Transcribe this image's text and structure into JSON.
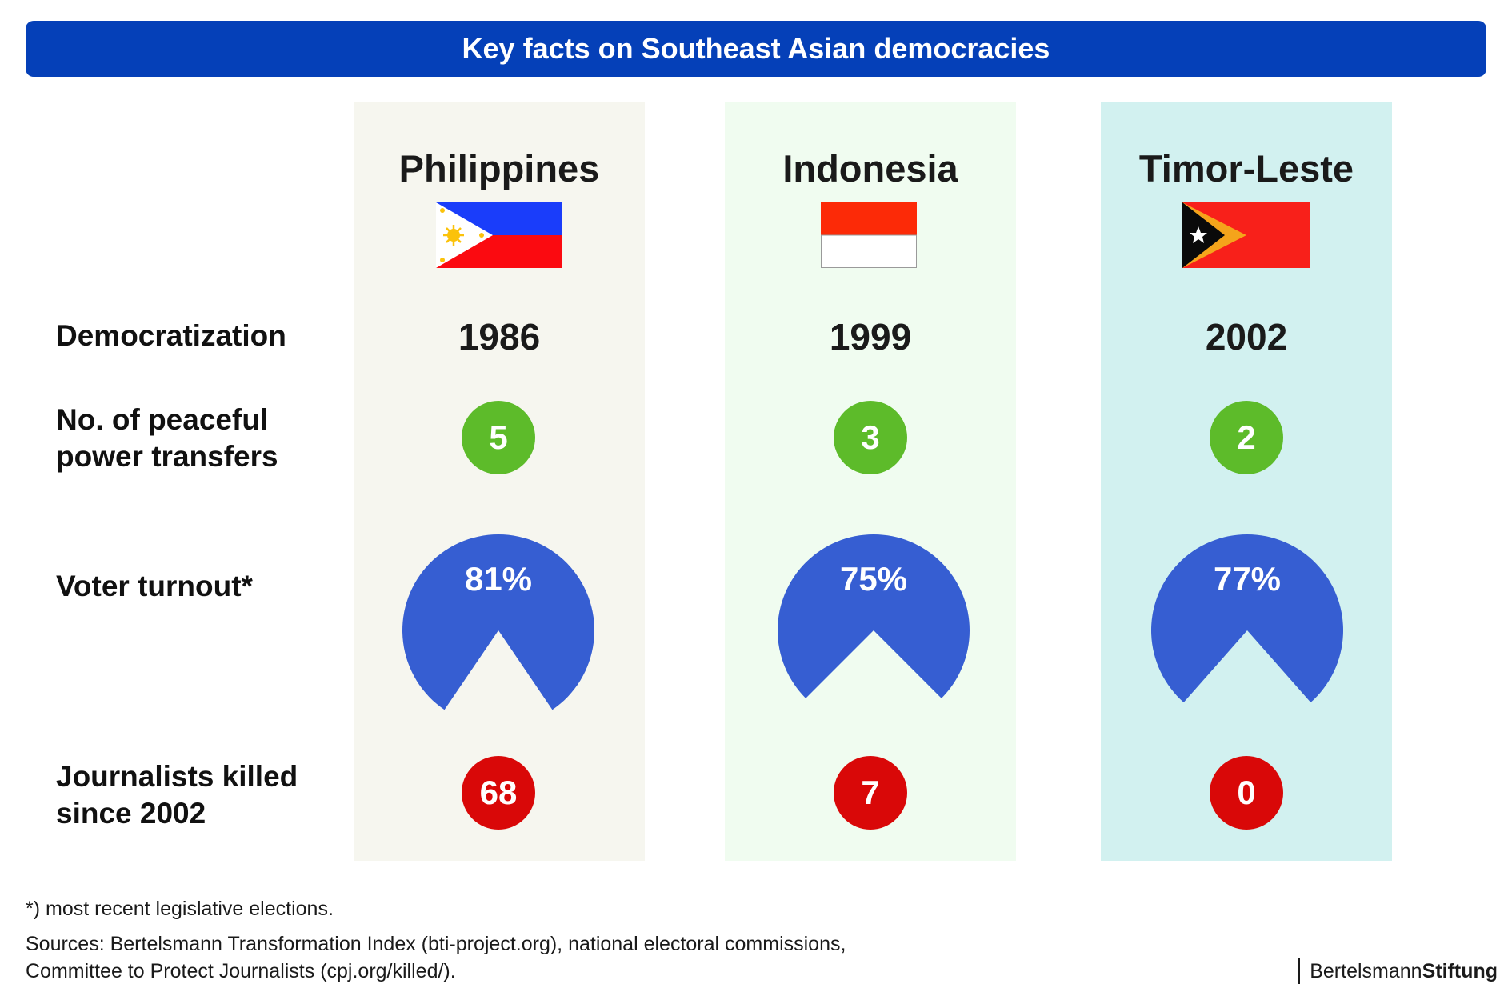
{
  "title": "Key facts on Southeast Asian democracies",
  "colors": {
    "banner": "#0540b8",
    "pie": "#365ed2",
    "green": "#5dbb2a",
    "red": "#d90808",
    "col_philippines": "#f6f6ef",
    "col_indonesia": "#f0fcf0",
    "col_timor": "#d2f1f0"
  },
  "row_labels": {
    "democratization": "Democratization",
    "transfers_line1": "No. of peaceful",
    "transfers_line2": "power transfers",
    "turnout": "Voter turnout*",
    "journalists_line1": "Journalists killed",
    "journalists_line2": "since 2002"
  },
  "countries": [
    {
      "name": "Philippines",
      "flag": "philippines-flag",
      "democratization": "1986",
      "transfers": "5",
      "turnout_label": "81%",
      "journalists": "68"
    },
    {
      "name": "Indonesia",
      "flag": "indonesia-flag",
      "democratization": "1999",
      "transfers": "3",
      "turnout_label": "75%",
      "journalists": "7"
    },
    {
      "name": "Timor-Leste",
      "flag": "timor-leste-flag",
      "democratization": "2002",
      "transfers": "2",
      "turnout_label": "77%",
      "journalists": "0"
    }
  ],
  "chart_data": {
    "type": "pie",
    "categories": [
      "Philippines",
      "Indonesia",
      "Timor-Leste"
    ],
    "series": [
      {
        "name": "Voter turnout*",
        "values": [
          81,
          75,
          77
        ]
      }
    ],
    "democratization_year": [
      1986,
      1999,
      2002
    ],
    "peaceful_power_transfers": [
      5,
      3,
      2
    ],
    "journalists_killed_since_2002": [
      68,
      7,
      0
    ]
  },
  "footnote": "*) most recent legislative elections.",
  "sources_line1": "Sources: Bertelsmann Transformation Index (bti-project.org), national electoral commissions,",
  "sources_line2": "Committee to Protect Journalists (cpj.org/killed/).",
  "logo": {
    "part1": "Bertelsmann",
    "part2": "Stiftung"
  }
}
